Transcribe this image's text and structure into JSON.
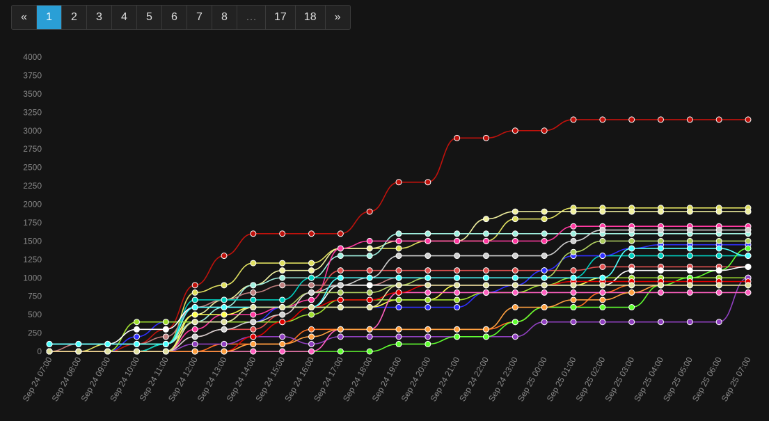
{
  "pagination": {
    "prev": "«",
    "pages": [
      "1",
      "2",
      "3",
      "4",
      "5",
      "6",
      "7",
      "8",
      "…",
      "17",
      "18"
    ],
    "active": "1",
    "next": "»"
  },
  "chart_data": {
    "type": "line",
    "x": [
      "Sep 24 07:00",
      "Sep 24 08:00",
      "Sep 24 09:00",
      "Sep 24 10:00",
      "Sep 24 11:00",
      "Sep 24 12:00",
      "Sep 24 13:00",
      "Sep 24 14:00",
      "Sep 24 15:00",
      "Sep 24 16:00",
      "Sep 24 17:00",
      "Sep 24 18:00",
      "Sep 24 19:00",
      "Sep 24 20:00",
      "Sep 24 21:00",
      "Sep 24 22:00",
      "Sep 24 23:00",
      "Sep 25 00:00",
      "Sep 25 01:00",
      "Sep 25 02:00",
      "Sep 25 03:00",
      "Sep 25 04:00",
      "Sep 25 05:00",
      "Sep 25 06:00",
      "Sep 25 07:00"
    ],
    "ylim": [
      0,
      4000
    ],
    "yticks": [
      0,
      250,
      500,
      750,
      1000,
      1250,
      1500,
      1750,
      2000,
      2250,
      2500,
      2750,
      3000,
      3250,
      3500,
      3750,
      4000
    ],
    "grid": false,
    "series": [
      {
        "color": "#c0120c",
        "values": [
          0,
          0,
          0,
          100,
          300,
          900,
          1300,
          1600,
          1600,
          1600,
          1600,
          1900,
          2300,
          2300,
          2900,
          2900,
          3000,
          3000,
          3150,
          3150,
          3150,
          3150,
          3150,
          3150,
          3150
        ]
      },
      {
        "color": "#e0e060",
        "values": [
          0,
          0,
          100,
          100,
          100,
          800,
          900,
          1200,
          1200,
          1200,
          1400,
          1400,
          1400,
          1500,
          1500,
          1500,
          1800,
          1800,
          1950,
          1950,
          1950,
          1950,
          1950,
          1950,
          1950
        ]
      },
      {
        "color": "#f0f0a0",
        "values": [
          0,
          0,
          0,
          0,
          100,
          500,
          700,
          900,
          1100,
          1100,
          1400,
          1400,
          1500,
          1500,
          1500,
          1800,
          1900,
          1900,
          1900,
          1900,
          1900,
          1900,
          1900,
          1900,
          1900
        ]
      },
      {
        "color": "#a0f0e0",
        "values": [
          0,
          0,
          0,
          0,
          100,
          400,
          600,
          900,
          1000,
          1000,
          1300,
          1300,
          1600,
          1600,
          1600,
          1600,
          1600,
          1600,
          1600,
          1600,
          1600,
          1600,
          1600,
          1600,
          1600
        ]
      },
      {
        "color": "#ff3aa0",
        "values": [
          0,
          0,
          0,
          0,
          0,
          300,
          500,
          500,
          600,
          700,
          1400,
          1500,
          1500,
          1500,
          1500,
          1500,
          1500,
          1500,
          1700,
          1700,
          1700,
          1700,
          1700,
          1700,
          1700
        ]
      },
      {
        "color": "#e05050",
        "values": [
          0,
          0,
          0,
          0,
          0,
          200,
          300,
          300,
          500,
          800,
          1100,
          1100,
          1100,
          1100,
          1100,
          1100,
          1100,
          1100,
          1100,
          1150,
          1150,
          1150,
          1150,
          1150,
          1150
        ]
      },
      {
        "color": "#c08080",
        "values": [
          0,
          100,
          100,
          100,
          200,
          600,
          700,
          800,
          900,
          900,
          900,
          900,
          1000,
          1000,
          1000,
          1000,
          1000,
          1000,
          1000,
          1000,
          1000,
          1000,
          1000,
          1000,
          1000
        ]
      },
      {
        "color": "#00d0c0",
        "values": [
          0,
          0,
          0,
          0,
          100,
          700,
          700,
          700,
          700,
          1000,
          1000,
          1000,
          1000,
          1000,
          1000,
          1000,
          1000,
          1000,
          1000,
          1300,
          1300,
          1300,
          1300,
          1300,
          1300
        ]
      },
      {
        "color": "#3030ff",
        "values": [
          0,
          0,
          0,
          200,
          400,
          400,
          400,
          400,
          600,
          600,
          600,
          600,
          600,
          600,
          600,
          800,
          900,
          1100,
          1300,
          1300,
          1400,
          1450,
          1450,
          1450,
          1450
        ]
      },
      {
        "color": "#ffff50",
        "values": [
          0,
          0,
          0,
          0,
          0,
          500,
          500,
          600,
          600,
          600,
          600,
          600,
          700,
          700,
          900,
          900,
          900,
          900,
          900,
          1000,
          1000,
          1000,
          1000,
          1000,
          1000
        ]
      },
      {
        "color": "#a0e030",
        "values": [
          0,
          0,
          0,
          400,
          400,
          400,
          400,
          400,
          400,
          500,
          700,
          700,
          700,
          700,
          700,
          800,
          800,
          900,
          1000,
          1000,
          1000,
          1000,
          1000,
          1000,
          1000
        ]
      },
      {
        "color": "#ff7020",
        "values": [
          0,
          0,
          0,
          0,
          0,
          0,
          100,
          100,
          100,
          300,
          300,
          300,
          300,
          300,
          300,
          300,
          400,
          600,
          600,
          800,
          900,
          900,
          900,
          900,
          900
        ]
      },
      {
        "color": "#9040c0",
        "values": [
          0,
          0,
          0,
          0,
          0,
          100,
          100,
          200,
          200,
          100,
          200,
          200,
          200,
          200,
          200,
          200,
          200,
          400,
          400,
          400,
          400,
          400,
          400,
          400,
          1000
        ]
      },
      {
        "color": "#60ff30",
        "values": [
          0,
          0,
          0,
          0,
          0,
          0,
          0,
          0,
          0,
          0,
          0,
          0,
          100,
          100,
          200,
          200,
          400,
          600,
          600,
          600,
          600,
          900,
          1000,
          1100,
          1400
        ]
      },
      {
        "color": "#ff60c0",
        "values": [
          0,
          0,
          0,
          0,
          0,
          0,
          0,
          0,
          0,
          0,
          300,
          300,
          800,
          800,
          800,
          800,
          800,
          800,
          800,
          800,
          800,
          800,
          800,
          800,
          800
        ]
      },
      {
        "color": "#ffffff",
        "values": [
          100,
          100,
          100,
          300,
          300,
          600,
          600,
          600,
          600,
          600,
          900,
          900,
          900,
          900,
          900,
          900,
          900,
          900,
          900,
          900,
          1100,
          1100,
          1100,
          1100,
          1150
        ]
      },
      {
        "color": "#b0d060",
        "values": [
          0,
          0,
          0,
          0,
          0,
          400,
          400,
          600,
          600,
          800,
          800,
          800,
          900,
          1000,
          1000,
          1000,
          1000,
          1000,
          1350,
          1500,
          1500,
          1500,
          1500,
          1500,
          1500
        ]
      },
      {
        "color": "#d0d0d0",
        "values": [
          0,
          0,
          0,
          0,
          0,
          200,
          300,
          400,
          500,
          800,
          900,
          1000,
          1300,
          1300,
          1300,
          1300,
          1300,
          1300,
          1500,
          1650,
          1650,
          1650,
          1650,
          1650,
          1650
        ]
      },
      {
        "color": "#e00000",
        "values": [
          0,
          0,
          0,
          0,
          0,
          0,
          0,
          200,
          400,
          600,
          700,
          700,
          800,
          900,
          900,
          900,
          900,
          900,
          950,
          950,
          950,
          950,
          950,
          950,
          950
        ]
      },
      {
        "color": "#ffa040",
        "values": [
          0,
          0,
          0,
          0,
          0,
          0,
          0,
          100,
          100,
          200,
          300,
          300,
          300,
          300,
          300,
          300,
          600,
          600,
          700,
          700,
          800,
          900,
          900,
          900,
          900
        ]
      },
      {
        "color": "#50ffff",
        "values": [
          100,
          100,
          100,
          100,
          100,
          600,
          600,
          600,
          600,
          600,
          1000,
          1000,
          1000,
          1000,
          1000,
          1000,
          1000,
          1000,
          1000,
          1000,
          1400,
          1400,
          1400,
          1400,
          1300
        ]
      },
      {
        "color": "#e0e0a0",
        "values": [
          0,
          0,
          0,
          0,
          0,
          400,
          400,
          600,
          600,
          600,
          600,
          600,
          900,
          900,
          900,
          900,
          900,
          900,
          900,
          900,
          900,
          900,
          900,
          900,
          900
        ]
      }
    ]
  }
}
